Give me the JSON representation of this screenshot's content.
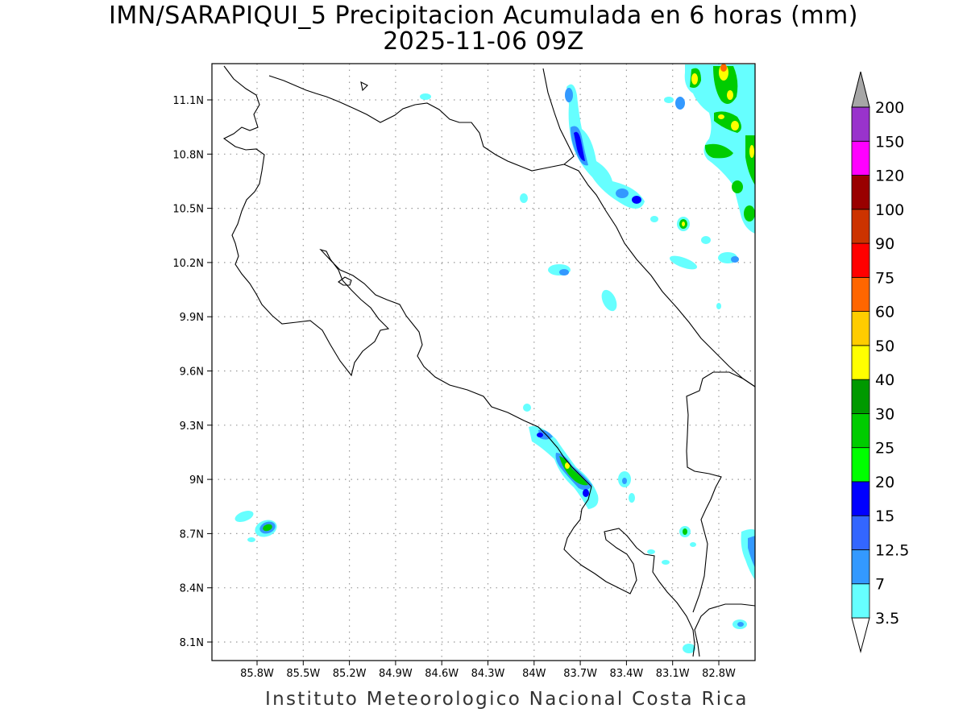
{
  "title": {
    "line1": "IMN/SARAPIQUI_5 Precipitacion Acumulada en 6 horas (mm)",
    "line2": "2025-11-06 09Z"
  },
  "footer": "Instituto Meteorologico Nacional Costa Rica",
  "map": {
    "x_ticks": [
      "85.8W",
      "85.5W",
      "85.2W",
      "84.9W",
      "84.6W",
      "84.3W",
      "84W",
      "83.7W",
      "83.4W",
      "83.1W",
      "82.8W"
    ],
    "y_ticks": [
      "11.1N",
      "10.8N",
      "10.5N",
      "10.2N",
      "9.9N",
      "9.6N",
      "9.3N",
      "9N",
      "8.7N",
      "8.4N",
      "8.1N"
    ],
    "lon_values": [
      -85.8,
      -85.5,
      -85.2,
      -84.9,
      -84.6,
      -84.3,
      -84.0,
      -83.7,
      -83.4,
      -83.1,
      -82.8
    ],
    "lat_values": [
      11.1,
      10.8,
      10.5,
      10.2,
      9.9,
      9.6,
      9.3,
      9.0,
      8.7,
      8.4,
      8.1
    ],
    "grid": true
  },
  "colorbar": {
    "levels": [
      "3.5",
      "7",
      "12.5",
      "15",
      "20",
      "25",
      "30",
      "40",
      "50",
      "60",
      "75",
      "90",
      "100",
      "120",
      "150",
      "200"
    ],
    "colors": [
      "#66ffff",
      "#3399ff",
      "#3366ff",
      "#0000ff",
      "#00ff00",
      "#00cc00",
      "#009900",
      "#ffff00",
      "#ffcc00",
      "#ff6600",
      "#ff0000",
      "#cc3300",
      "#990000",
      "#ff00ff",
      "#9933cc",
      "#f2f2f2",
      "#a6a6a6"
    ]
  }
}
